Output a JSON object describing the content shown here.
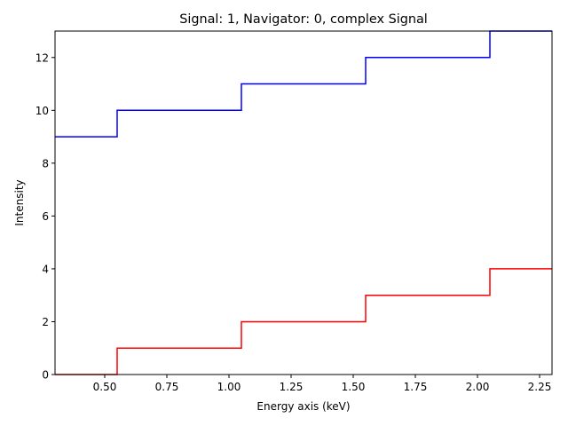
{
  "chart_data": {
    "type": "line",
    "step": true,
    "title": "Signal: 1, Navigator: 0, complex Signal",
    "xlabel": "Energy axis (keV)",
    "ylabel": "Intensity",
    "xlim": [
      0.3,
      2.3
    ],
    "ylim": [
      0,
      13
    ],
    "xticks": [
      0.5,
      0.75,
      1.0,
      1.25,
      1.5,
      1.75,
      2.0,
      2.25
    ],
    "xtick_labels": [
      "0.50",
      "0.75",
      "1.00",
      "1.25",
      "1.50",
      "1.75",
      "2.00",
      "2.25"
    ],
    "yticks": [
      0,
      2,
      4,
      6,
      8,
      10,
      12
    ],
    "ytick_labels": [
      "0",
      "2",
      "4",
      "6",
      "8",
      "10",
      "12"
    ],
    "grid": false,
    "series": [
      {
        "color": "#0000ff",
        "x": [
          0.3,
          0.55,
          1.05,
          1.55,
          2.05,
          2.3
        ],
        "y": [
          9,
          10,
          11,
          12,
          13,
          13
        ]
      },
      {
        "color": "#ff0000",
        "x": [
          0.3,
          0.55,
          1.05,
          1.55,
          2.05,
          2.3
        ],
        "y": [
          0,
          1,
          2,
          3,
          4,
          4
        ]
      }
    ]
  }
}
